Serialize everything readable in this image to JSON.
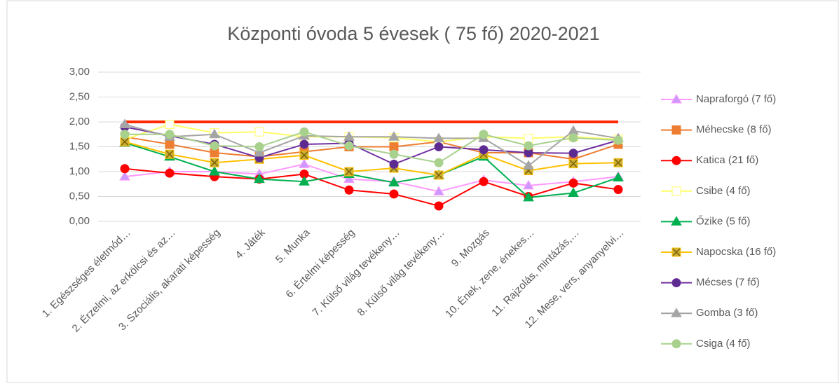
{
  "chart_data": {
    "type": "line",
    "title": "Központi óvoda 5 évesek ( 75 fő) 2020-2021",
    "categories": [
      "1. Egészséges életmód…",
      "2. Érzelmi, az erkölcsi és az…",
      "3. Szociális, akarati képesség",
      "4. Játék",
      "5. Munka",
      "6. Értelmi képesség",
      "7. Külső világ tevékeny…",
      "8. Külső világ tevékeny…",
      "9. Mozgás",
      "10. Ének, zene, énekes…",
      "11. Rajzolás, mintázás,…",
      "12. Mese, vers, anyanyelvi…"
    ],
    "ylim": [
      0,
      3
    ],
    "yticks": [
      {
        "value": 0,
        "label": "0,00"
      },
      {
        "value": 0.5,
        "label": "0,50"
      },
      {
        "value": 1,
        "label": "1,00"
      },
      {
        "value": 1.5,
        "label": "1,50"
      },
      {
        "value": 2,
        "label": "2,00"
      },
      {
        "value": 2.5,
        "label": "2,50"
      },
      {
        "value": 3,
        "label": "3,00"
      }
    ],
    "grid": true,
    "legend": "right",
    "reference_line": {
      "value": 2,
      "color": "#ff2a00"
    },
    "series": [
      {
        "name": "Napraforgó (7 fő)",
        "color": "#ff99ff",
        "marker": "triangle",
        "marker_fill": "#cc99ff",
        "values": [
          0.9,
          1.0,
          1.0,
          0.95,
          1.15,
          0.85,
          0.8,
          0.6,
          0.83,
          0.72,
          0.8,
          0.9
        ]
      },
      {
        "name": "Méhecske (8 fő)",
        "color": "#ed7d31",
        "marker": "square",
        "marker_fill": "#ed7d31",
        "values": [
          1.7,
          1.55,
          1.38,
          1.3,
          1.4,
          1.5,
          1.5,
          1.6,
          1.38,
          1.38,
          1.25,
          1.55
        ]
      },
      {
        "name": "Katica (21 fő)",
        "color": "#ff0000",
        "marker": "circle",
        "marker_fill": "#ff0000",
        "values": [
          1.06,
          0.97,
          0.9,
          0.85,
          0.95,
          0.63,
          0.55,
          0.31,
          0.8,
          0.5,
          0.77,
          0.64
        ]
      },
      {
        "name": "Csibe (4 fő)",
        "color": "#ffff66",
        "marker": "square",
        "marker_fill": "#ffffff",
        "values": [
          1.65,
          1.95,
          1.78,
          1.8,
          1.7,
          1.7,
          1.68,
          1.6,
          1.7,
          1.67,
          1.7,
          1.65
        ]
      },
      {
        "name": "Őzike (5 fő)",
        "color": "#00b050",
        "marker": "triangle",
        "marker_fill": "#00b050",
        "values": [
          1.58,
          1.3,
          1.0,
          0.85,
          0.8,
          0.95,
          0.78,
          0.93,
          1.3,
          0.48,
          0.57,
          0.88
        ]
      },
      {
        "name": "Napocska (16 fő)",
        "color": "#ffc000",
        "marker": "x",
        "marker_fill": "#c9b037",
        "values": [
          1.6,
          1.35,
          1.18,
          1.25,
          1.33,
          1.0,
          1.07,
          0.93,
          1.35,
          1.02,
          1.16,
          1.18
        ]
      },
      {
        "name": "Mécses (7 fő)",
        "color": "#7030a0",
        "marker": "circle",
        "marker_fill": "#5b2b8f",
        "values": [
          1.9,
          1.72,
          1.55,
          1.28,
          1.55,
          1.57,
          1.15,
          1.5,
          1.44,
          1.38,
          1.37,
          1.63
        ]
      },
      {
        "name": "Gomba (3 fő)",
        "color": "#a5a5a5",
        "marker": "triangle",
        "marker_fill": "#a5a5a5",
        "values": [
          1.95,
          1.7,
          1.75,
          1.38,
          1.72,
          1.7,
          1.7,
          1.67,
          1.67,
          1.12,
          1.82,
          1.67
        ]
      },
      {
        "name": "Csiga (4 fő)",
        "color": "#a9d18e",
        "marker": "circle",
        "marker_fill": "#a9d18e",
        "values": [
          1.75,
          1.75,
          1.52,
          1.5,
          1.8,
          1.52,
          1.35,
          1.18,
          1.75,
          1.52,
          1.68,
          1.63
        ]
      }
    ]
  }
}
